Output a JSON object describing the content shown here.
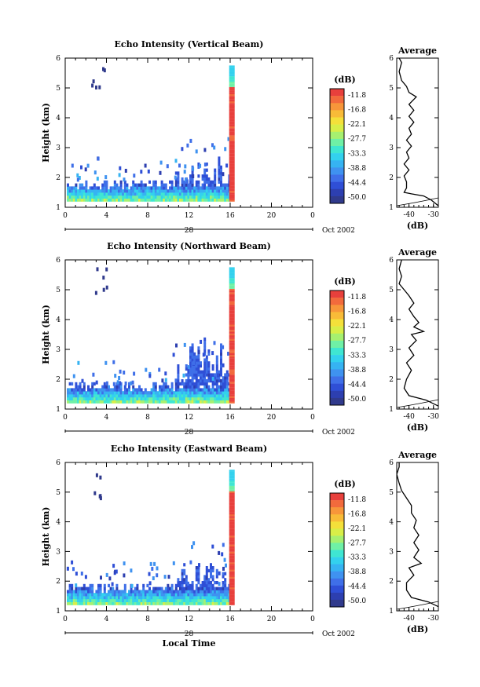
{
  "chart_data": [
    {
      "type": "heatmap",
      "title": "Echo Intensity (Vertical Beam)",
      "ylabel": "Height (km)",
      "xlabel": "",
      "x_ticks": [
        "0",
        "4",
        "8",
        "12",
        "16",
        "20",
        "0"
      ],
      "xlim": [
        0,
        24
      ],
      "ylim": [
        1,
        6
      ],
      "y_ticks": [
        "1",
        "2",
        "3",
        "4",
        "5",
        "6"
      ],
      "date_day": "28",
      "date_month": "Oct 2002",
      "colorbar": {
        "unit": "(dB)",
        "ticks": [
          "-11.8",
          "-16.8",
          "-22.1",
          "-27.7",
          "-33.3",
          "-38.8",
          "-44.4",
          "-50.0"
        ]
      },
      "average": {
        "title": "Average",
        "xlabel": "(dB)",
        "x_ticks": [
          "-40",
          "-30"
        ],
        "xlim": [
          -45,
          -28
        ],
        "profile": [
          [
            -28,
            1.05
          ],
          [
            -31,
            1.25
          ],
          [
            -34,
            1.38
          ],
          [
            -39,
            1.45
          ],
          [
            -42,
            1.5
          ],
          [
            -41,
            1.65
          ],
          [
            -41,
            1.85
          ],
          [
            -42,
            2.05
          ],
          [
            -40,
            2.25
          ],
          [
            -42,
            2.45
          ],
          [
            -40,
            2.65
          ],
          [
            -41,
            2.85
          ],
          [
            -39,
            3.05
          ],
          [
            -41,
            3.25
          ],
          [
            -39,
            3.45
          ],
          [
            -40,
            3.65
          ],
          [
            -38,
            3.85
          ],
          [
            -40,
            4.05
          ],
          [
            -38,
            4.25
          ],
          [
            -40,
            4.45
          ],
          [
            -37,
            4.7
          ],
          [
            -40,
            4.85
          ],
          [
            -41,
            5.05
          ],
          [
            -43,
            5.25
          ],
          [
            -44,
            5.55
          ],
          [
            -43,
            5.85
          ],
          [
            -44,
            6.0
          ]
        ]
      }
    },
    {
      "type": "heatmap",
      "title": "Echo Intensity (Northward Beam)",
      "ylabel": "Height (km)",
      "xlabel": "",
      "x_ticks": [
        "0",
        "4",
        "8",
        "12",
        "16",
        "20",
        "0"
      ],
      "xlim": [
        0,
        24
      ],
      "ylim": [
        1,
        6
      ],
      "y_ticks": [
        "1",
        "2",
        "3",
        "4",
        "5",
        "6"
      ],
      "date_day": "28",
      "date_month": "Oct 2002",
      "colorbar": {
        "unit": "(dB)",
        "ticks": [
          "-11.8",
          "-16.8",
          "-22.1",
          "-27.7",
          "-33.3",
          "-38.8",
          "-44.4",
          "-50.0"
        ]
      },
      "average": {
        "title": "Average",
        "xlabel": "(dB)",
        "x_ticks": [
          "-40",
          "-30"
        ],
        "xlim": [
          -45,
          -28
        ],
        "profile": [
          [
            -28,
            1.1
          ],
          [
            -33,
            1.3
          ],
          [
            -40,
            1.45
          ],
          [
            -42,
            1.7
          ],
          [
            -41,
            2.0
          ],
          [
            -39,
            2.3
          ],
          [
            -41,
            2.55
          ],
          [
            -38,
            2.8
          ],
          [
            -40,
            3.05
          ],
          [
            -37,
            3.3
          ],
          [
            -39,
            3.5
          ],
          [
            -34,
            3.6
          ],
          [
            -38,
            3.75
          ],
          [
            -36,
            3.9
          ],
          [
            -38,
            4.1
          ],
          [
            -40,
            4.35
          ],
          [
            -38,
            4.55
          ],
          [
            -40,
            4.8
          ],
          [
            -42,
            5.0
          ],
          [
            -44,
            5.2
          ],
          [
            -43,
            5.45
          ],
          [
            -44,
            5.7
          ],
          [
            -43,
            6.0
          ]
        ]
      }
    },
    {
      "type": "heatmap",
      "title": "Echo Intensity (Eastward Beam)",
      "ylabel": "Height (km)",
      "xlabel": "Local Time",
      "x_ticks": [
        "0",
        "4",
        "8",
        "12",
        "16",
        "20",
        "0"
      ],
      "xlim": [
        0,
        24
      ],
      "ylim": [
        1,
        6
      ],
      "y_ticks": [
        "1",
        "2",
        "3",
        "4",
        "5",
        "6"
      ],
      "date_day": "28",
      "date_month": "Oct 2002",
      "colorbar": {
        "unit": "(dB)",
        "ticks": [
          "-11.8",
          "-16.8",
          "-22.1",
          "-27.7",
          "-33.3",
          "-38.8",
          "-44.4",
          "-50.0"
        ]
      },
      "average": {
        "title": "Average",
        "xlabel": "(dB)",
        "x_ticks": [
          "-40",
          "-30"
        ],
        "xlim": [
          -45,
          -28
        ],
        "profile": [
          [
            -27,
            1.1
          ],
          [
            -32,
            1.3
          ],
          [
            -39,
            1.45
          ],
          [
            -41,
            1.7
          ],
          [
            -41,
            1.95
          ],
          [
            -38,
            2.2
          ],
          [
            -40,
            2.45
          ],
          [
            -35,
            2.6
          ],
          [
            -38,
            2.8
          ],
          [
            -36,
            3.05
          ],
          [
            -38,
            3.3
          ],
          [
            -36,
            3.55
          ],
          [
            -38,
            3.8
          ],
          [
            -37,
            4.05
          ],
          [
            -39,
            4.3
          ],
          [
            -39,
            4.55
          ],
          [
            -41,
            4.8
          ],
          [
            -43,
            5.05
          ],
          [
            -44,
            5.3
          ],
          [
            -45,
            5.6
          ],
          [
            -44,
            5.85
          ],
          [
            -44,
            6.0
          ]
        ]
      }
    }
  ]
}
